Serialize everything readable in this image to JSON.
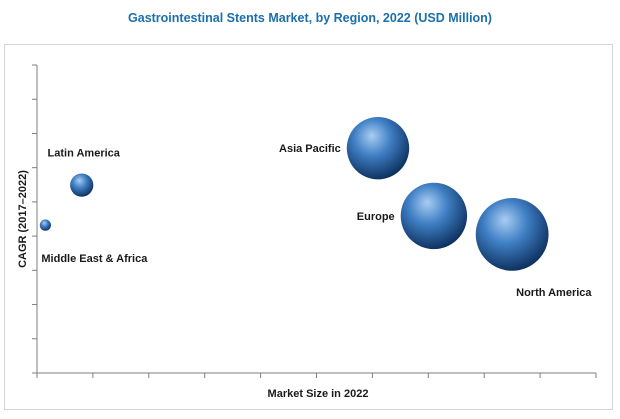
{
  "title": "Gastrointestinal Stents Market, by Region, 2022 (USD Million)",
  "chart_data": {
    "type": "scatter",
    "title": "Gastrointestinal Stents Market, by Region, 2022 (USD Million)",
    "xlabel": "Market Size in 2022",
    "ylabel": "CAGR (2017–2022)",
    "grid": false,
    "tick_labels_shown": false,
    "colors": {
      "bubble_light": "#a9cdf2",
      "bubble_mid": "#3f7fc4",
      "bubble_dark": "#0c2f5c",
      "title": "#1b6fae"
    },
    "series": [
      {
        "name": "Asia Pacific",
        "x": 0.61,
        "y": 0.73,
        "size": 0.78
      },
      {
        "name": "Europe",
        "x": 0.71,
        "y": 0.51,
        "size": 0.83
      },
      {
        "name": "North America",
        "x": 0.85,
        "y": 0.45,
        "size": 0.91
      },
      {
        "name": "Latin America",
        "x": 0.08,
        "y": 0.61,
        "size": 0.29
      },
      {
        "name": "Middle East & Africa",
        "x": 0.015,
        "y": 0.48,
        "size": 0.14
      }
    ]
  }
}
